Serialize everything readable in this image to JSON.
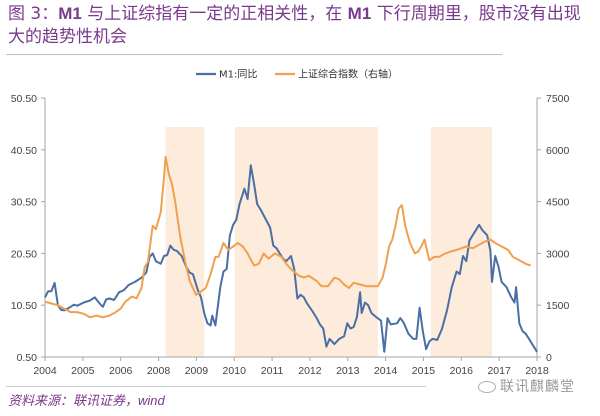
{
  "figure": {
    "title_prefix": "图 3：",
    "title_m1_a": "M1",
    "title_mid": " 与上证综指有一定的正相关性，在 ",
    "title_m1_b": "M1",
    "title_suffix": " 下行周期里，股市没有出现大的趋势性机会",
    "source_prefix": "资料来源：联讯证券，",
    "source_wind": "wind",
    "watermark": "联讯麒麟堂"
  },
  "colors": {
    "m1": "#4a6fa5",
    "index": "#f0a050",
    "shade": "#fdebdc",
    "title": "#7a3a8c"
  },
  "chart_data": {
    "type": "line",
    "title": "",
    "legend": [
      "M1:同比",
      "上证综合指数（右轴）"
    ],
    "legend_position": "top-center",
    "x_tick_labels": [
      "2004",
      "2005",
      "2006",
      "2008",
      "2009",
      "2010",
      "2011",
      "2012",
      "2013",
      "2014",
      "2015",
      "2016",
      "2017",
      "2018"
    ],
    "y_left": {
      "label": "",
      "range": [
        0.5,
        50.5
      ],
      "ticks": [
        "0.50",
        "10.50",
        "20.50",
        "30.50",
        "40.50",
        "50.50"
      ]
    },
    "y_right": {
      "label": "右轴",
      "range": [
        0,
        7500
      ],
      "ticks": [
        "0",
        "1500",
        "3000",
        "4500",
        "6000",
        "7500"
      ]
    },
    "shaded_periods": [
      [
        2007.75,
        2008.95
      ],
      [
        2009.9,
        2014.35
      ],
      [
        2016.0,
        2017.9
      ]
    ],
    "series": [
      {
        "name": "M1:同比",
        "axis": "left",
        "points": [
          [
            2004.0,
            12.0
          ],
          [
            2004.1,
            13.2
          ],
          [
            2004.2,
            13.2
          ],
          [
            2004.3,
            14.8
          ],
          [
            2004.4,
            10.5
          ],
          [
            2004.5,
            9.6
          ],
          [
            2004.6,
            9.5
          ],
          [
            2004.75,
            10.0
          ],
          [
            2004.9,
            10.6
          ],
          [
            2005.0,
            10.4
          ],
          [
            2005.2,
            11.0
          ],
          [
            2005.4,
            11.4
          ],
          [
            2005.55,
            12.0
          ],
          [
            2005.7,
            10.8
          ],
          [
            2005.8,
            10.2
          ],
          [
            2005.9,
            11.6
          ],
          [
            2006.0,
            11.8
          ],
          [
            2006.15,
            11.5
          ],
          [
            2006.3,
            13.0
          ],
          [
            2006.45,
            13.4
          ],
          [
            2006.6,
            14.4
          ],
          [
            2006.8,
            15.0
          ],
          [
            2007.0,
            15.8
          ],
          [
            2007.15,
            16.8
          ],
          [
            2007.25,
            19.8
          ],
          [
            2007.35,
            20.5
          ],
          [
            2007.45,
            19.0
          ],
          [
            2007.6,
            18.5
          ],
          [
            2007.7,
            20.0
          ],
          [
            2007.8,
            20.2
          ],
          [
            2007.9,
            22.0
          ],
          [
            2008.0,
            21.2
          ],
          [
            2008.1,
            21.0
          ],
          [
            2008.25,
            20.0
          ],
          [
            2008.4,
            17.8
          ],
          [
            2008.5,
            16.8
          ],
          [
            2008.6,
            16.5
          ],
          [
            2008.75,
            13.5
          ],
          [
            2008.85,
            12.0
          ],
          [
            2008.95,
            9.0
          ],
          [
            2009.05,
            7.0
          ],
          [
            2009.15,
            6.6
          ],
          [
            2009.2,
            8.5
          ],
          [
            2009.3,
            6.6
          ],
          [
            2009.45,
            14.0
          ],
          [
            2009.55,
            17.0
          ],
          [
            2009.65,
            17.5
          ],
          [
            2009.75,
            24.0
          ],
          [
            2009.85,
            26.0
          ],
          [
            2009.95,
            27.0
          ],
          [
            2010.05,
            30.0
          ],
          [
            2010.2,
            33.0
          ],
          [
            2010.3,
            31.0
          ],
          [
            2010.4,
            37.5
          ],
          [
            2010.5,
            34.0
          ],
          [
            2010.6,
            30.0
          ],
          [
            2010.7,
            29.0
          ],
          [
            2011.0,
            25.5
          ],
          [
            2011.1,
            22.0
          ],
          [
            2011.2,
            21.5
          ],
          [
            2011.3,
            20.5
          ],
          [
            2011.4,
            19.5
          ],
          [
            2011.5,
            19.0
          ],
          [
            2011.65,
            20.0
          ],
          [
            2011.75,
            17.5
          ],
          [
            2011.85,
            11.8
          ],
          [
            2011.95,
            12.5
          ],
          [
            2012.05,
            12.0
          ],
          [
            2012.15,
            10.8
          ],
          [
            2012.3,
            9.5
          ],
          [
            2012.45,
            8.0
          ],
          [
            2012.55,
            6.8
          ],
          [
            2012.65,
            6.0
          ],
          [
            2012.75,
            2.5
          ],
          [
            2012.85,
            4.0
          ],
          [
            2013.0,
            3.0
          ],
          [
            2013.15,
            4.0
          ],
          [
            2013.3,
            4.5
          ],
          [
            2013.4,
            7.0
          ],
          [
            2013.5,
            6.0
          ],
          [
            2013.6,
            6.3
          ],
          [
            2013.7,
            8.2
          ],
          [
            2013.8,
            13.0
          ],
          [
            2013.85,
            9.0
          ],
          [
            2013.95,
            11.0
          ],
          [
            2014.05,
            10.5
          ],
          [
            2014.15,
            9.0
          ],
          [
            2014.3,
            8.2
          ],
          [
            2014.45,
            7.5
          ],
          [
            2014.55,
            1.5
          ],
          [
            2014.65,
            8.0
          ],
          [
            2014.75,
            6.8
          ],
          [
            2014.95,
            7.0
          ],
          [
            2015.05,
            8.0
          ],
          [
            2015.15,
            7.2
          ],
          [
            2015.3,
            5.0
          ],
          [
            2015.45,
            4.0
          ],
          [
            2015.55,
            4.0
          ],
          [
            2015.65,
            10.0
          ],
          [
            2015.75,
            5.5
          ],
          [
            2015.85,
            2.0
          ],
          [
            2015.95,
            3.5
          ],
          [
            2016.05,
            4.0
          ],
          [
            2016.2,
            3.8
          ],
          [
            2016.35,
            6.0
          ],
          [
            2016.5,
            9.5
          ],
          [
            2016.65,
            14.0
          ],
          [
            2016.8,
            17.0
          ],
          [
            2016.9,
            16.5
          ],
          [
            2017.0,
            20.0
          ],
          [
            2017.1,
            19.0
          ],
          [
            2017.2,
            23.0
          ],
          [
            2017.35,
            24.5
          ],
          [
            2017.5,
            26.0
          ],
          [
            2017.6,
            25.0
          ],
          [
            2017.75,
            24.0
          ],
          [
            2017.85,
            21.0
          ],
          [
            2017.9,
            15.0
          ],
          [
            2018.0,
            20.0
          ],
          [
            2018.1,
            18.0
          ],
          [
            2018.2,
            15.0
          ],
          [
            2018.35,
            14.0
          ],
          [
            2018.5,
            12.0
          ],
          [
            2018.6,
            11.0
          ],
          [
            2018.65,
            14.0
          ],
          [
            2018.75,
            7.0
          ],
          [
            2018.85,
            5.5
          ],
          [
            2018.95,
            5.0
          ],
          [
            2019.05,
            4.0
          ],
          [
            2019.15,
            3.0
          ],
          [
            2019.25,
            2.0
          ],
          [
            2019.3,
            1.5
          ]
        ]
      },
      {
        "name": "上证综合指数（右轴）",
        "axis": "right",
        "points": [
          [
            2004.0,
            1600
          ],
          [
            2004.2,
            1550
          ],
          [
            2004.4,
            1500
          ],
          [
            2004.6,
            1400
          ],
          [
            2004.8,
            1300
          ],
          [
            2005.0,
            1300
          ],
          [
            2005.2,
            1250
          ],
          [
            2005.4,
            1150
          ],
          [
            2005.6,
            1200
          ],
          [
            2005.8,
            1150
          ],
          [
            2006.0,
            1200
          ],
          [
            2006.2,
            1300
          ],
          [
            2006.35,
            1400
          ],
          [
            2006.5,
            1600
          ],
          [
            2006.7,
            1750
          ],
          [
            2006.85,
            1700
          ],
          [
            2007.0,
            2000
          ],
          [
            2007.1,
            2600
          ],
          [
            2007.2,
            2750
          ],
          [
            2007.35,
            3800
          ],
          [
            2007.45,
            3700
          ],
          [
            2007.6,
            4200
          ],
          [
            2007.7,
            5200
          ],
          [
            2007.75,
            5800
          ],
          [
            2007.85,
            5300
          ],
          [
            2007.95,
            5000
          ],
          [
            2008.05,
            4500
          ],
          [
            2008.2,
            3500
          ],
          [
            2008.35,
            2800
          ],
          [
            2008.5,
            2200
          ],
          [
            2008.7,
            1800
          ],
          [
            2008.85,
            1900
          ],
          [
            2009.0,
            2000
          ],
          [
            2009.15,
            2400
          ],
          [
            2009.3,
            2900
          ],
          [
            2009.4,
            2900
          ],
          [
            2009.55,
            3300
          ],
          [
            2009.7,
            3100
          ],
          [
            2009.85,
            3200
          ],
          [
            2010.0,
            3300
          ],
          [
            2010.15,
            3200
          ],
          [
            2010.3,
            3000
          ],
          [
            2010.5,
            2650
          ],
          [
            2010.65,
            2700
          ],
          [
            2010.8,
            3000
          ],
          [
            2010.95,
            2850
          ],
          [
            2011.15,
            3000
          ],
          [
            2011.35,
            2900
          ],
          [
            2011.5,
            2700
          ],
          [
            2011.7,
            2500
          ],
          [
            2011.9,
            2350
          ],
          [
            2012.05,
            2300
          ],
          [
            2012.2,
            2350
          ],
          [
            2012.45,
            2200
          ],
          [
            2012.6,
            2050
          ],
          [
            2012.8,
            2050
          ],
          [
            2013.0,
            2300
          ],
          [
            2013.15,
            2250
          ],
          [
            2013.3,
            2100
          ],
          [
            2013.45,
            2000
          ],
          [
            2013.6,
            2150
          ],
          [
            2013.8,
            2100
          ],
          [
            2014.0,
            2050
          ],
          [
            2014.2,
            2050
          ],
          [
            2014.35,
            2050
          ],
          [
            2014.5,
            2300
          ],
          [
            2014.6,
            2700
          ],
          [
            2014.7,
            3200
          ],
          [
            2014.8,
            3400
          ],
          [
            2014.9,
            3800
          ],
          [
            2015.0,
            4300
          ],
          [
            2015.1,
            4400
          ],
          [
            2015.2,
            3800
          ],
          [
            2015.35,
            3300
          ],
          [
            2015.5,
            3000
          ],
          [
            2015.6,
            3050
          ],
          [
            2015.7,
            3200
          ],
          [
            2015.8,
            3400
          ],
          [
            2015.95,
            2800
          ],
          [
            2016.1,
            2900
          ],
          [
            2016.25,
            2900
          ],
          [
            2016.45,
            3000
          ],
          [
            2016.6,
            3050
          ],
          [
            2016.8,
            3100
          ],
          [
            2016.95,
            3150
          ],
          [
            2017.1,
            3200
          ],
          [
            2017.3,
            3150
          ],
          [
            2017.5,
            3250
          ],
          [
            2017.7,
            3350
          ],
          [
            2017.85,
            3400
          ],
          [
            2018.0,
            3300
          ],
          [
            2018.2,
            3200
          ],
          [
            2018.4,
            3100
          ],
          [
            2018.55,
            2900
          ],
          [
            2018.75,
            2800
          ],
          [
            2018.95,
            2700
          ],
          [
            2019.1,
            2650
          ]
        ]
      }
    ]
  }
}
